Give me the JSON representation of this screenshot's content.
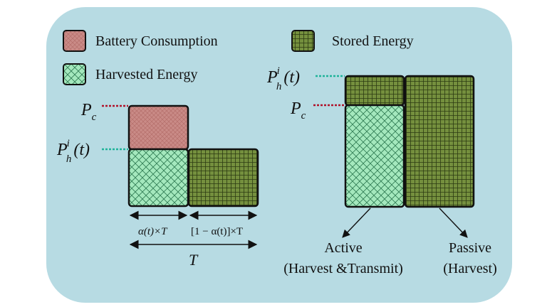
{
  "legend": {
    "battery": "Battery Consumption",
    "stored": "Stored Energy",
    "harvested": "Harvested Energy"
  },
  "left": {
    "pc_main": "P",
    "pc_sub": "c",
    "ph_main": "P",
    "ph_sup": "i",
    "ph_sub": "h",
    "ph_arg": "(t)",
    "alpha_label": "α(t)×T",
    "one_minus_label": "[1 − α(t)]×T",
    "total_label": "T"
  },
  "right": {
    "ph_main": "P",
    "ph_sup": "i",
    "ph_sub": "h",
    "ph_arg": "(t)",
    "pc_main": "P",
    "pc_sub": "c",
    "active_line1": "Active",
    "active_line2": "(Harvest &Transmit)",
    "passive_line1": "Passive",
    "passive_line2": "(Harvest)"
  },
  "colors": {
    "panel": "#b7dbe3",
    "battery": "#c98a86",
    "stored": "#6f8a3a",
    "harvested": "#9fe5b8",
    "dashed_red": "#b0122a",
    "dashed_teal": "#1fb39a"
  }
}
